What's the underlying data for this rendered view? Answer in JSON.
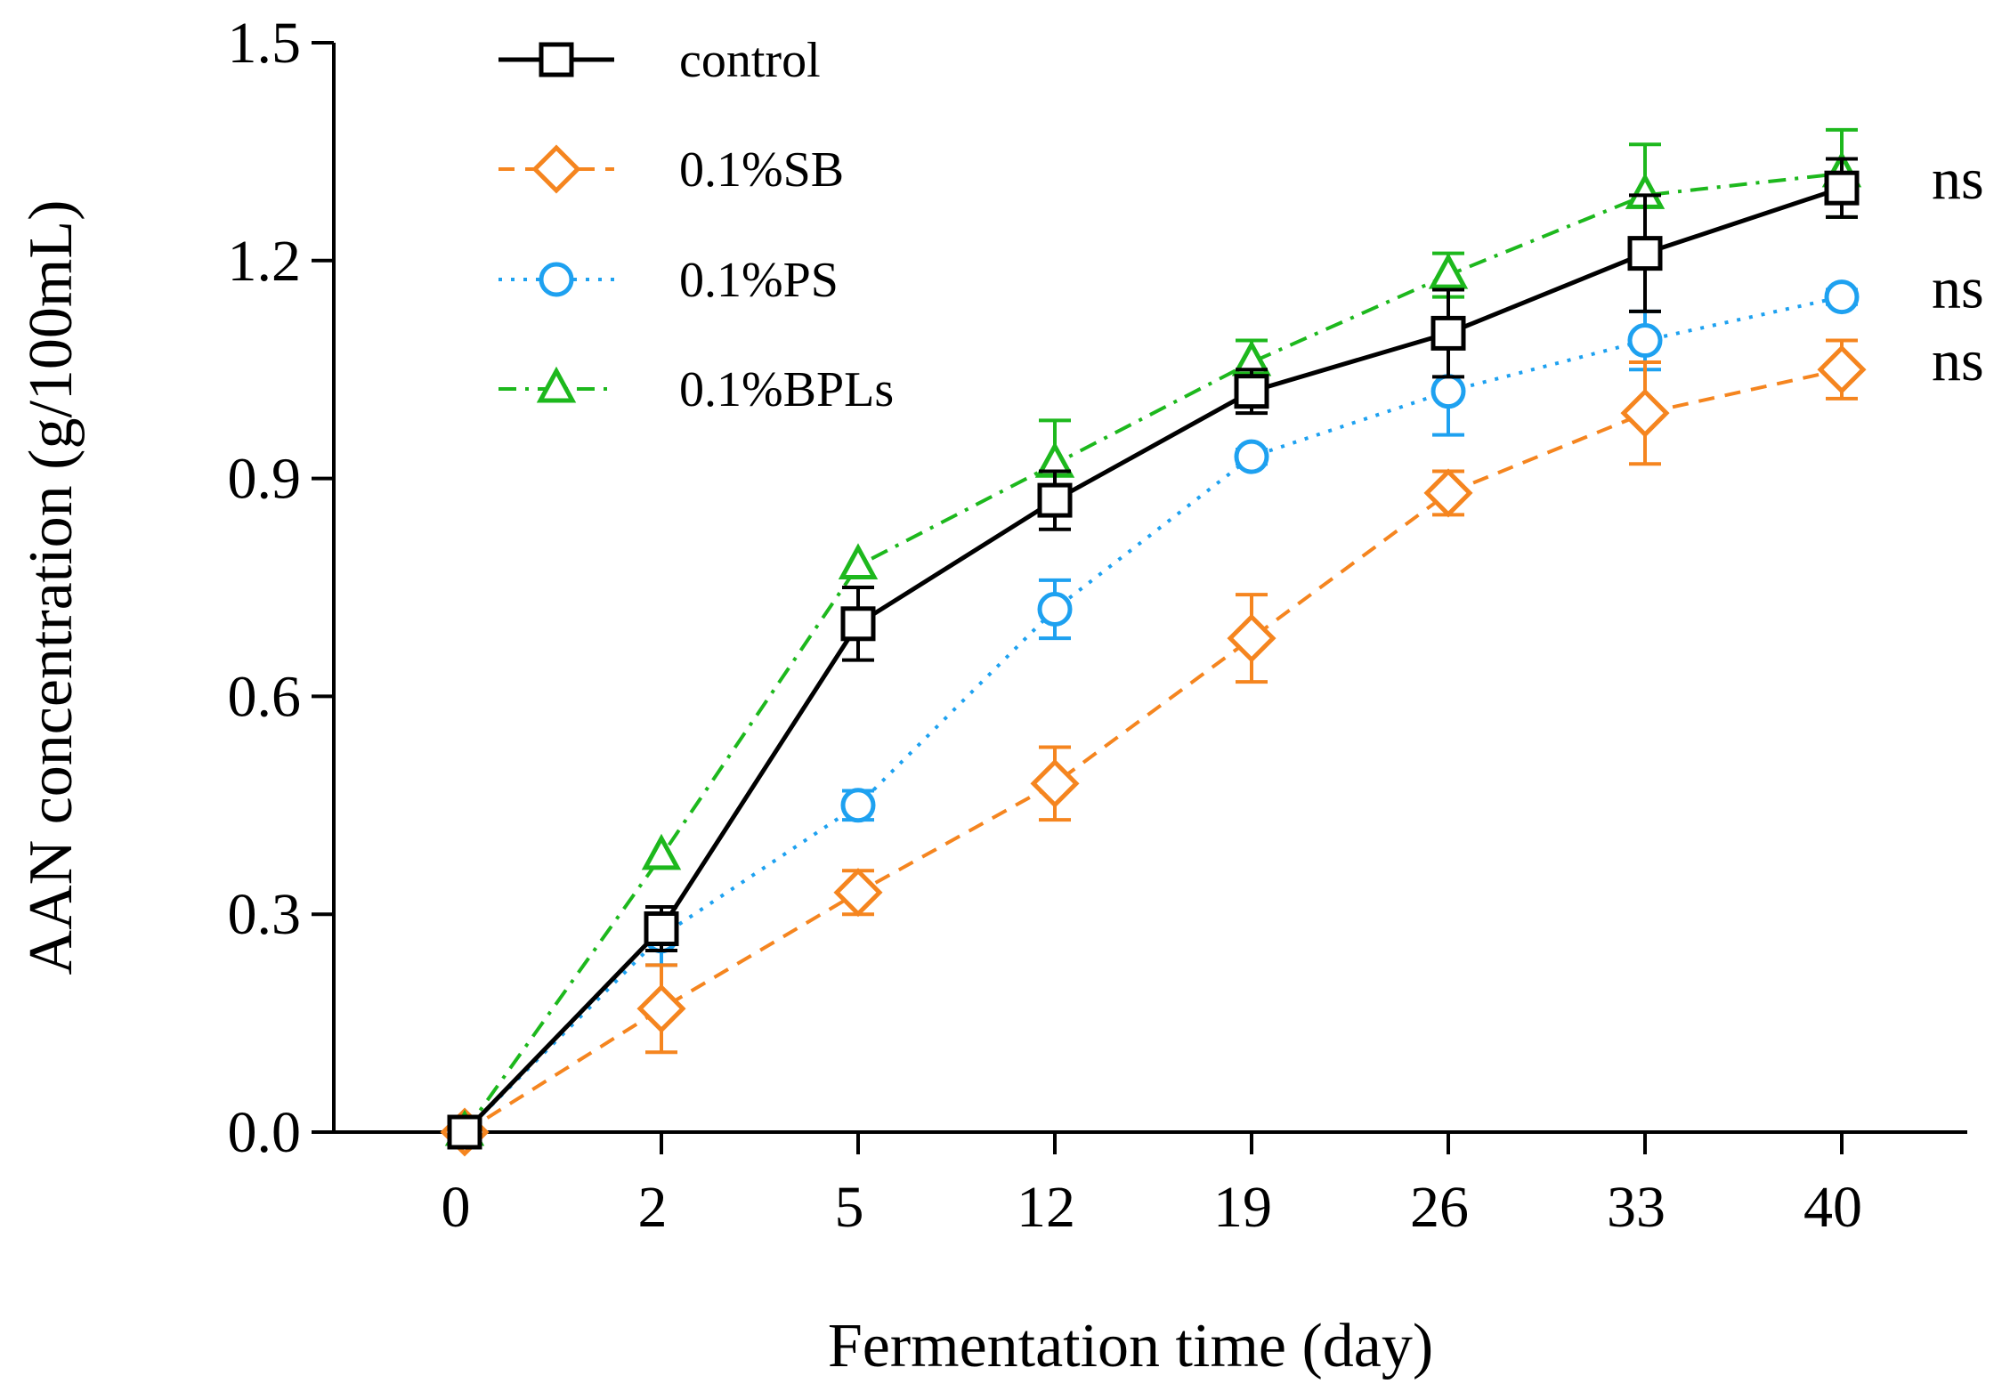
{
  "chart_data": {
    "type": "line",
    "xlabel": "Fermentation time (day)",
    "ylabel": "AAN concentration (g/100mL)",
    "categories": [
      "0",
      "2",
      "5",
      "12",
      "19",
      "26",
      "33",
      "40"
    ],
    "ylim": [
      0.0,
      1.5
    ],
    "yticks": [
      "0.0",
      "0.3",
      "0.6",
      "0.9",
      "1.2",
      "1.5"
    ],
    "grid": false,
    "legend_position": "top-left",
    "series": [
      {
        "name": "control",
        "marker": "square",
        "dash": "solid",
        "color": "#000000",
        "values": [
          0.0,
          0.28,
          0.7,
          0.87,
          1.02,
          1.1,
          1.21,
          1.3
        ],
        "errors": [
          0.0,
          0.03,
          0.05,
          0.04,
          0.03,
          0.06,
          0.08,
          0.04
        ]
      },
      {
        "name": "0.1%SB",
        "marker": "diamond",
        "dash": "dashed",
        "color": "#f5851f",
        "values": [
          0.0,
          0.17,
          0.33,
          0.48,
          0.68,
          0.88,
          0.99,
          1.05
        ],
        "errors": [
          0.0,
          0.06,
          0.03,
          0.05,
          0.06,
          0.03,
          0.07,
          0.04
        ]
      },
      {
        "name": "0.1%PS",
        "marker": "circle",
        "dash": "dotted",
        "color": "#1ea1f0",
        "values": [
          0.0,
          0.27,
          0.45,
          0.72,
          0.93,
          1.02,
          1.09,
          1.15
        ],
        "errors": [
          0.0,
          0.04,
          0.02,
          0.04,
          0.01,
          0.06,
          0.04,
          0.01
        ]
      },
      {
        "name": "0.1%BPLs",
        "marker": "triangle",
        "dash": "dashdot",
        "color": "#1db81d",
        "values": [
          0.0,
          0.38,
          0.78,
          0.92,
          1.06,
          1.18,
          1.29,
          1.32
        ],
        "errors": [
          0.0,
          0.0,
          0.0,
          0.06,
          0.03,
          0.03,
          0.07,
          0.06
        ]
      }
    ],
    "annotations": [
      {
        "text": "ns",
        "value": 1.3
      },
      {
        "text": "ns",
        "value": 1.15
      },
      {
        "text": "ns",
        "value": 1.05
      }
    ]
  }
}
